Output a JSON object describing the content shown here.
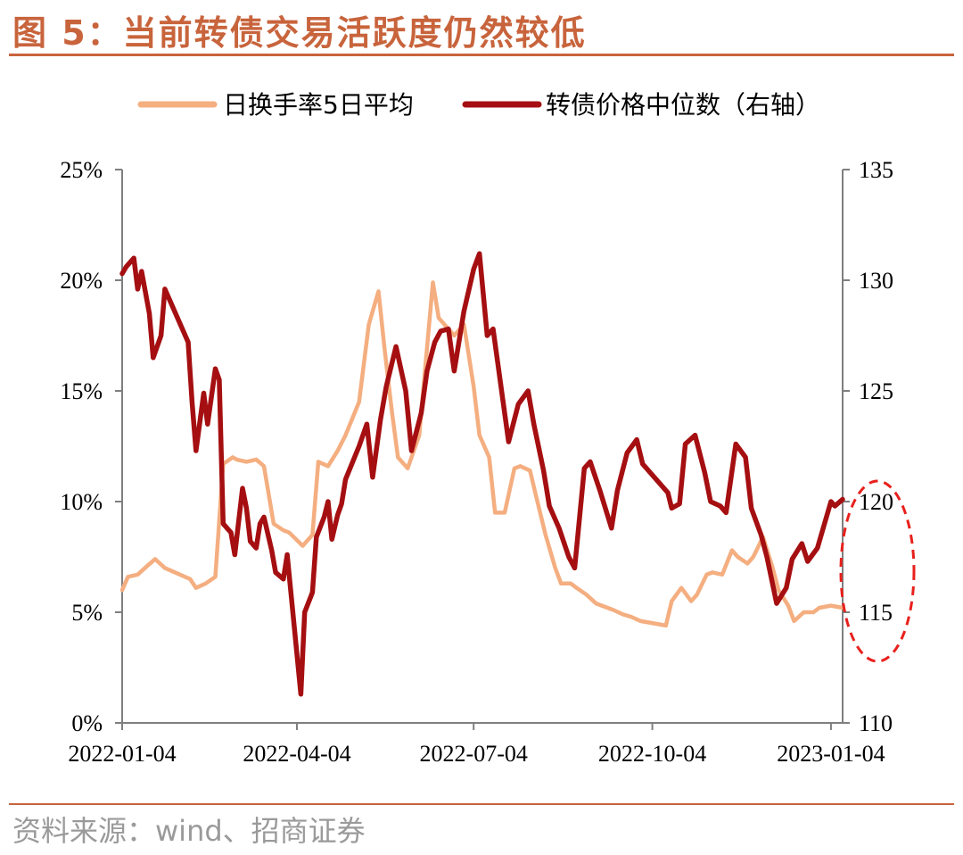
{
  "figure": {
    "title": "图 5：当前转债交易活跃度仍然较低",
    "source": "资料来源：wind、招商证券"
  },
  "colors": {
    "turnover": "#f4ae80",
    "price": "#a50f11",
    "accent": "#c8643c",
    "circle": "#e8201c"
  },
  "chart_data": {
    "type": "line",
    "x_tick_labels": [
      "2022-01-04",
      "2022-04-04",
      "2022-07-04",
      "2022-10-04",
      "2023-01-04"
    ],
    "x_range": [
      "2022-01-04",
      "2023-01-10"
    ],
    "y_left": {
      "ticks": [
        "0%",
        "5%",
        "10%",
        "15%",
        "20%",
        "25%"
      ],
      "range": [
        0,
        25
      ],
      "unit": "%"
    },
    "y_right": {
      "ticks": [
        "110",
        "115",
        "120",
        "125",
        "130",
        "135"
      ],
      "range": [
        110,
        135
      ]
    },
    "legend": [
      "日换手率5日平均",
      "转债价格中位数（右轴）"
    ],
    "legend_position": "top",
    "annotation": "dashed red ellipse highlighting latest values",
    "series": [
      {
        "name": "日换手率5日平均",
        "axis": "left",
        "x": [
          "2022-01-04",
          "2022-01-07",
          "2022-01-12",
          "2022-01-17",
          "2022-01-21",
          "2022-01-26",
          "2022-02-08",
          "2022-02-11",
          "2022-02-16",
          "2022-02-21",
          "2022-02-25",
          "2022-03-02",
          "2022-03-04",
          "2022-03-09",
          "2022-03-14",
          "2022-03-18",
          "2022-03-23",
          "2022-03-28",
          "2022-03-31",
          "2022-04-07",
          "2022-04-12",
          "2022-04-15",
          "2022-04-20",
          "2022-04-25",
          "2022-04-29",
          "2022-05-06",
          "2022-05-11",
          "2022-05-16",
          "2022-05-19",
          "2022-05-23",
          "2022-05-26",
          "2022-05-31",
          "2022-06-06",
          "2022-06-09",
          "2022-06-13",
          "2022-06-16",
          "2022-06-21",
          "2022-06-24",
          "2022-06-29",
          "2022-07-04",
          "2022-07-07",
          "2022-07-12",
          "2022-07-15",
          "2022-07-20",
          "2022-07-25",
          "2022-07-28",
          "2022-08-02",
          "2022-08-05",
          "2022-08-10",
          "2022-08-15",
          "2022-08-18",
          "2022-08-23",
          "2022-08-26",
          "2022-08-31",
          "2022-09-05",
          "2022-09-08",
          "2022-09-14",
          "2022-09-19",
          "2022-09-23",
          "2022-09-28",
          "2022-10-11",
          "2022-10-14",
          "2022-10-19",
          "2022-10-24",
          "2022-10-27",
          "2022-11-01",
          "2022-11-04",
          "2022-11-09",
          "2022-11-14",
          "2022-11-17",
          "2022-11-22",
          "2022-11-25",
          "2022-11-30",
          "2022-12-05",
          "2022-12-08",
          "2022-12-13",
          "2022-12-16",
          "2022-12-21",
          "2022-12-26",
          "2022-12-29",
          "2023-01-04",
          "2023-01-10"
        ],
        "values": [
          6.0,
          6.6,
          6.7,
          7.1,
          7.4,
          7.0,
          6.5,
          6.1,
          6.3,
          6.6,
          11.7,
          12.0,
          11.9,
          11.8,
          11.9,
          11.6,
          9.0,
          8.7,
          8.6,
          8.0,
          8.5,
          11.8,
          11.6,
          12.3,
          13.0,
          14.5,
          18.0,
          19.5,
          17.0,
          14.0,
          12.0,
          11.5,
          13.0,
          16.0,
          19.9,
          18.3,
          17.8,
          17.5,
          18.0,
          15.2,
          13.0,
          12.0,
          9.5,
          9.5,
          11.5,
          11.6,
          11.4,
          10.3,
          8.5,
          7.0,
          6.3,
          6.3,
          6.1,
          5.8,
          5.4,
          5.3,
          5.1,
          4.9,
          4.8,
          4.6,
          4.4,
          5.5,
          6.1,
          5.5,
          5.8,
          6.7,
          6.8,
          6.7,
          7.8,
          7.5,
          7.2,
          7.5,
          8.4,
          7.0,
          6.0,
          5.3,
          4.6,
          5.0,
          5.0,
          5.2,
          5.3,
          5.2
        ]
      },
      {
        "name": "转债价格中位数（右轴）",
        "axis": "right",
        "x": [
          "2022-01-04",
          "2022-01-06",
          "2022-01-10",
          "2022-01-12",
          "2022-01-14",
          "2022-01-18",
          "2022-01-20",
          "2022-01-24",
          "2022-01-26",
          "2022-02-07",
          "2022-02-09",
          "2022-02-11",
          "2022-02-15",
          "2022-02-17",
          "2022-02-21",
          "2022-02-23",
          "2022-02-25",
          "2022-03-01",
          "2022-03-03",
          "2022-03-07",
          "2022-03-09",
          "2022-03-11",
          "2022-03-14",
          "2022-03-16",
          "2022-03-18",
          "2022-03-22",
          "2022-03-24",
          "2022-03-28",
          "2022-03-30",
          "2022-04-06",
          "2022-04-08",
          "2022-04-12",
          "2022-04-14",
          "2022-04-18",
          "2022-04-20",
          "2022-04-22",
          "2022-04-25",
          "2022-04-27",
          "2022-04-29",
          "2022-05-06",
          "2022-05-10",
          "2022-05-13",
          "2022-05-17",
          "2022-05-20",
          "2022-05-25",
          "2022-05-30",
          "2022-06-02",
          "2022-06-07",
          "2022-06-10",
          "2022-06-14",
          "2022-06-17",
          "2022-06-21",
          "2022-06-24",
          "2022-06-29",
          "2022-07-04",
          "2022-07-07",
          "2022-07-11",
          "2022-07-14",
          "2022-07-19",
          "2022-07-22",
          "2022-07-27",
          "2022-08-01",
          "2022-08-04",
          "2022-08-09",
          "2022-08-12",
          "2022-08-17",
          "2022-08-22",
          "2022-08-25",
          "2022-08-30",
          "2022-09-02",
          "2022-09-07",
          "2022-09-13",
          "2022-09-16",
          "2022-09-21",
          "2022-09-26",
          "2022-09-29",
          "2022-10-12",
          "2022-10-14",
          "2022-10-18",
          "2022-10-21",
          "2022-10-26",
          "2022-10-31",
          "2022-11-03",
          "2022-11-08",
          "2022-11-11",
          "2022-11-16",
          "2022-11-21",
          "2022-11-24",
          "2022-11-29",
          "2022-12-02",
          "2022-12-07",
          "2022-12-12",
          "2022-12-15",
          "2022-12-20",
          "2022-12-23",
          "2022-12-28",
          "2023-01-04",
          "2023-01-06",
          "2023-01-10"
        ],
        "values": [
          130.3,
          130.6,
          131.0,
          129.6,
          130.4,
          128.5,
          126.5,
          127.5,
          129.6,
          127.2,
          124.5,
          122.3,
          124.9,
          123.5,
          126.0,
          125.5,
          119.0,
          118.6,
          117.6,
          120.6,
          119.7,
          118.2,
          117.9,
          119.0,
          119.3,
          117.8,
          116.8,
          116.5,
          117.6,
          111.3,
          115.0,
          115.9,
          118.4,
          119.3,
          120.0,
          118.3,
          119.4,
          119.9,
          121.0,
          122.5,
          123.5,
          121.1,
          123.7,
          125.2,
          127.0,
          125.0,
          122.3,
          124.0,
          125.9,
          127.2,
          127.7,
          127.8,
          125.9,
          128.6,
          130.5,
          131.2,
          127.5,
          127.8,
          124.6,
          122.7,
          124.4,
          125.0,
          123.5,
          121.4,
          119.8,
          118.8,
          117.5,
          117.0,
          121.5,
          121.8,
          120.5,
          118.8,
          120.5,
          122.2,
          122.8,
          121.7,
          120.4,
          119.7,
          119.9,
          122.6,
          123.0,
          121.3,
          120.0,
          119.8,
          119.5,
          122.6,
          122.0,
          119.7,
          118.5,
          117.5,
          115.4,
          116.1,
          117.4,
          118.1,
          117.3,
          117.9,
          120.0,
          119.8,
          120.1
        ]
      }
    ]
  }
}
